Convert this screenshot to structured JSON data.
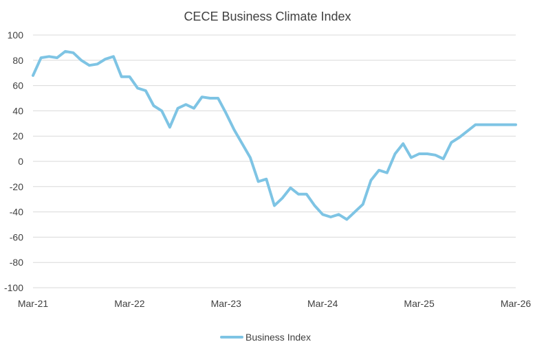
{
  "chart_data": {
    "type": "line",
    "title": "CECE Business Climate Index",
    "xlabel": "",
    "ylabel": "",
    "ylim": [
      -100,
      100
    ],
    "y_ticks": [
      100,
      80,
      60,
      40,
      20,
      0,
      -20,
      -40,
      -60,
      -80,
      -100
    ],
    "y_tick_labels": [
      "100",
      "80",
      "60",
      "40",
      "20",
      "0",
      "-20",
      "-40",
      "-60",
      "-80",
      "-100"
    ],
    "x_tick_labels": [
      "Mar-21",
      "Mar-22",
      "Mar-23",
      "Mar-24",
      "Mar-25",
      "Mar-26"
    ],
    "x_range_months": [
      0,
      60
    ],
    "grid": true,
    "legend_position": "bottom",
    "series": [
      {
        "name": "Business Index",
        "color": "#7ec4e4",
        "x_months": [
          0,
          1,
          2,
          3,
          4,
          5,
          6,
          7,
          8,
          9,
          10,
          11,
          12,
          13,
          14,
          15,
          16,
          17,
          18,
          19,
          20,
          21,
          22,
          23,
          24,
          25,
          26,
          27,
          28,
          29,
          30,
          31,
          32,
          33,
          34,
          35,
          36,
          37,
          38,
          39,
          40,
          41,
          42,
          43,
          44,
          45,
          46,
          47,
          48,
          49,
          50,
          51,
          52,
          53,
          54,
          55,
          56,
          57,
          58,
          59,
          60
        ],
        "values": [
          68,
          82,
          83,
          82,
          87,
          86,
          80,
          76,
          77,
          81,
          83,
          67,
          67,
          58,
          56,
          44,
          40,
          27,
          42,
          45,
          42,
          51,
          50,
          50,
          38,
          25,
          14,
          3,
          -16,
          -14,
          -35,
          -29,
          -21,
          -26,
          -26,
          -35,
          -42,
          -44,
          -42,
          -46,
          -40,
          -34,
          -15,
          -7,
          -9,
          6,
          14,
          3,
          6,
          6,
          5,
          2,
          15,
          19,
          24,
          29,
          29,
          29,
          29,
          29,
          29
        ]
      }
    ]
  }
}
